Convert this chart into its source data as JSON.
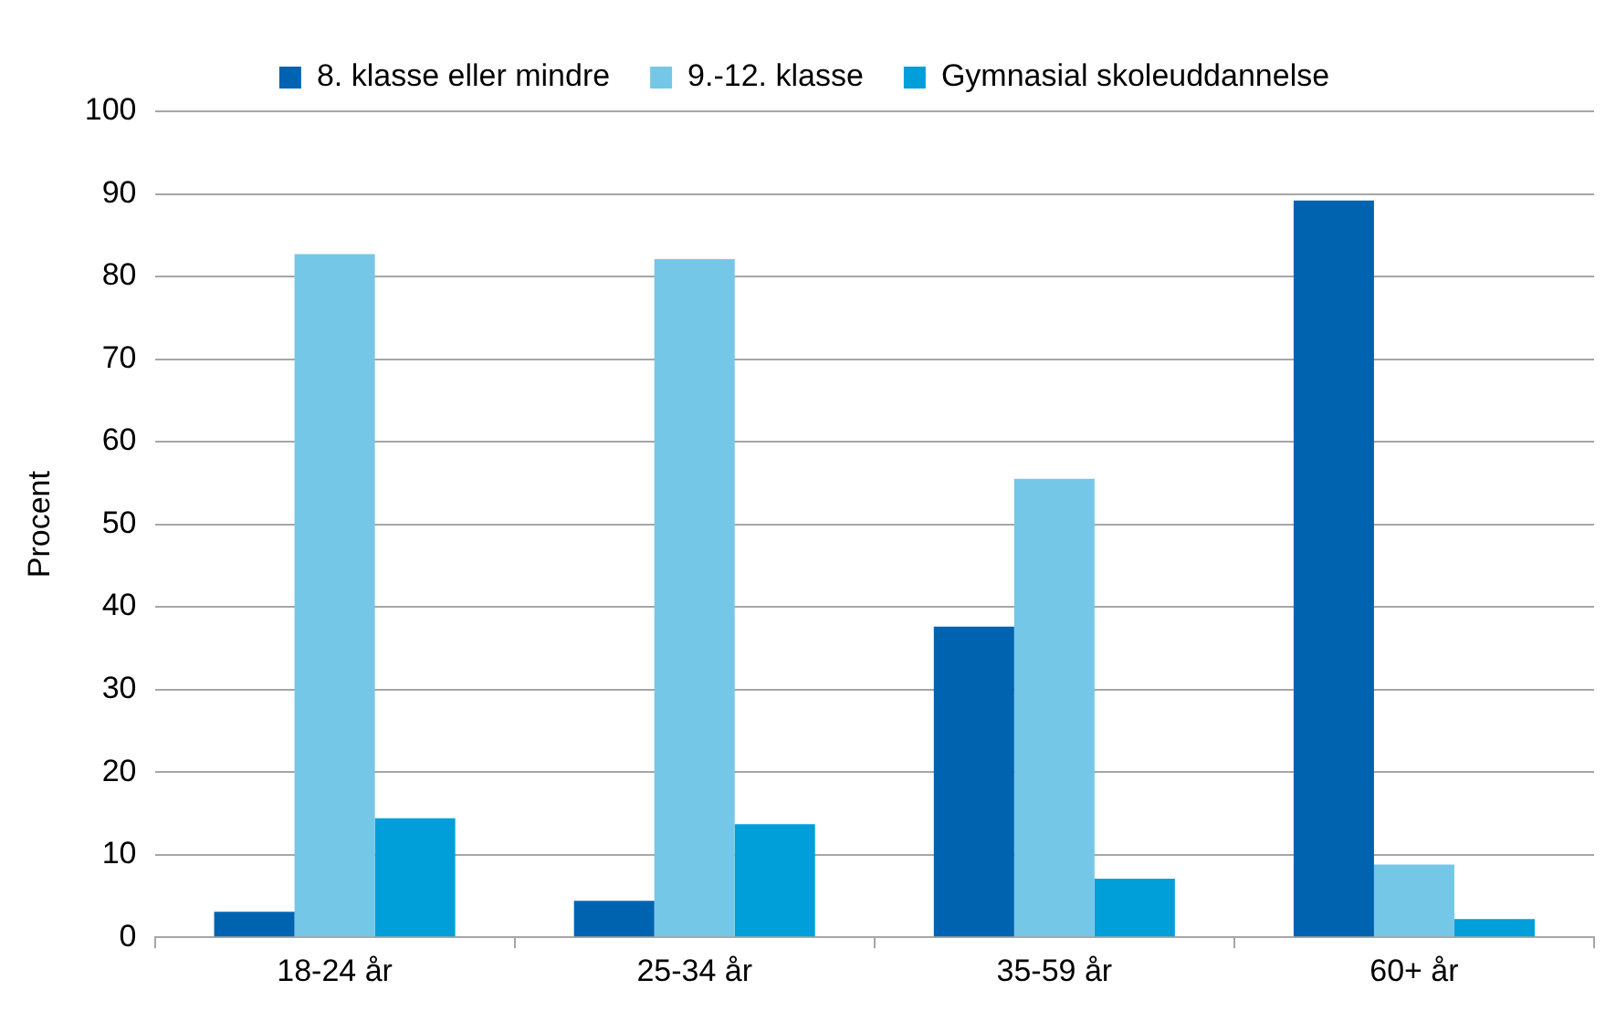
{
  "chart_data": {
    "type": "bar",
    "ylabel": "Procent",
    "categories": [
      "18-24 år",
      "25-34 år",
      "35-59 år",
      "60+ år"
    ],
    "series": [
      {
        "name": "8. klasse eller mindre",
        "color": "#0063b0",
        "values": [
          3.1,
          4.4,
          37.6,
          89.2
        ]
      },
      {
        "name": "9.-12. klasse",
        "color": "#75c7e7",
        "values": [
          82.7,
          82.1,
          55.5,
          8.8
        ]
      },
      {
        "name": "Gymnasial skoleuddannelse",
        "color": "#009fda",
        "values": [
          14.4,
          13.7,
          7.1,
          2.2
        ]
      }
    ],
    "ylim": [
      0,
      100
    ],
    "yticks": [
      0,
      10,
      20,
      30,
      40,
      50,
      60,
      70,
      80,
      90,
      100
    ],
    "grid": "y",
    "legend": "top"
  }
}
